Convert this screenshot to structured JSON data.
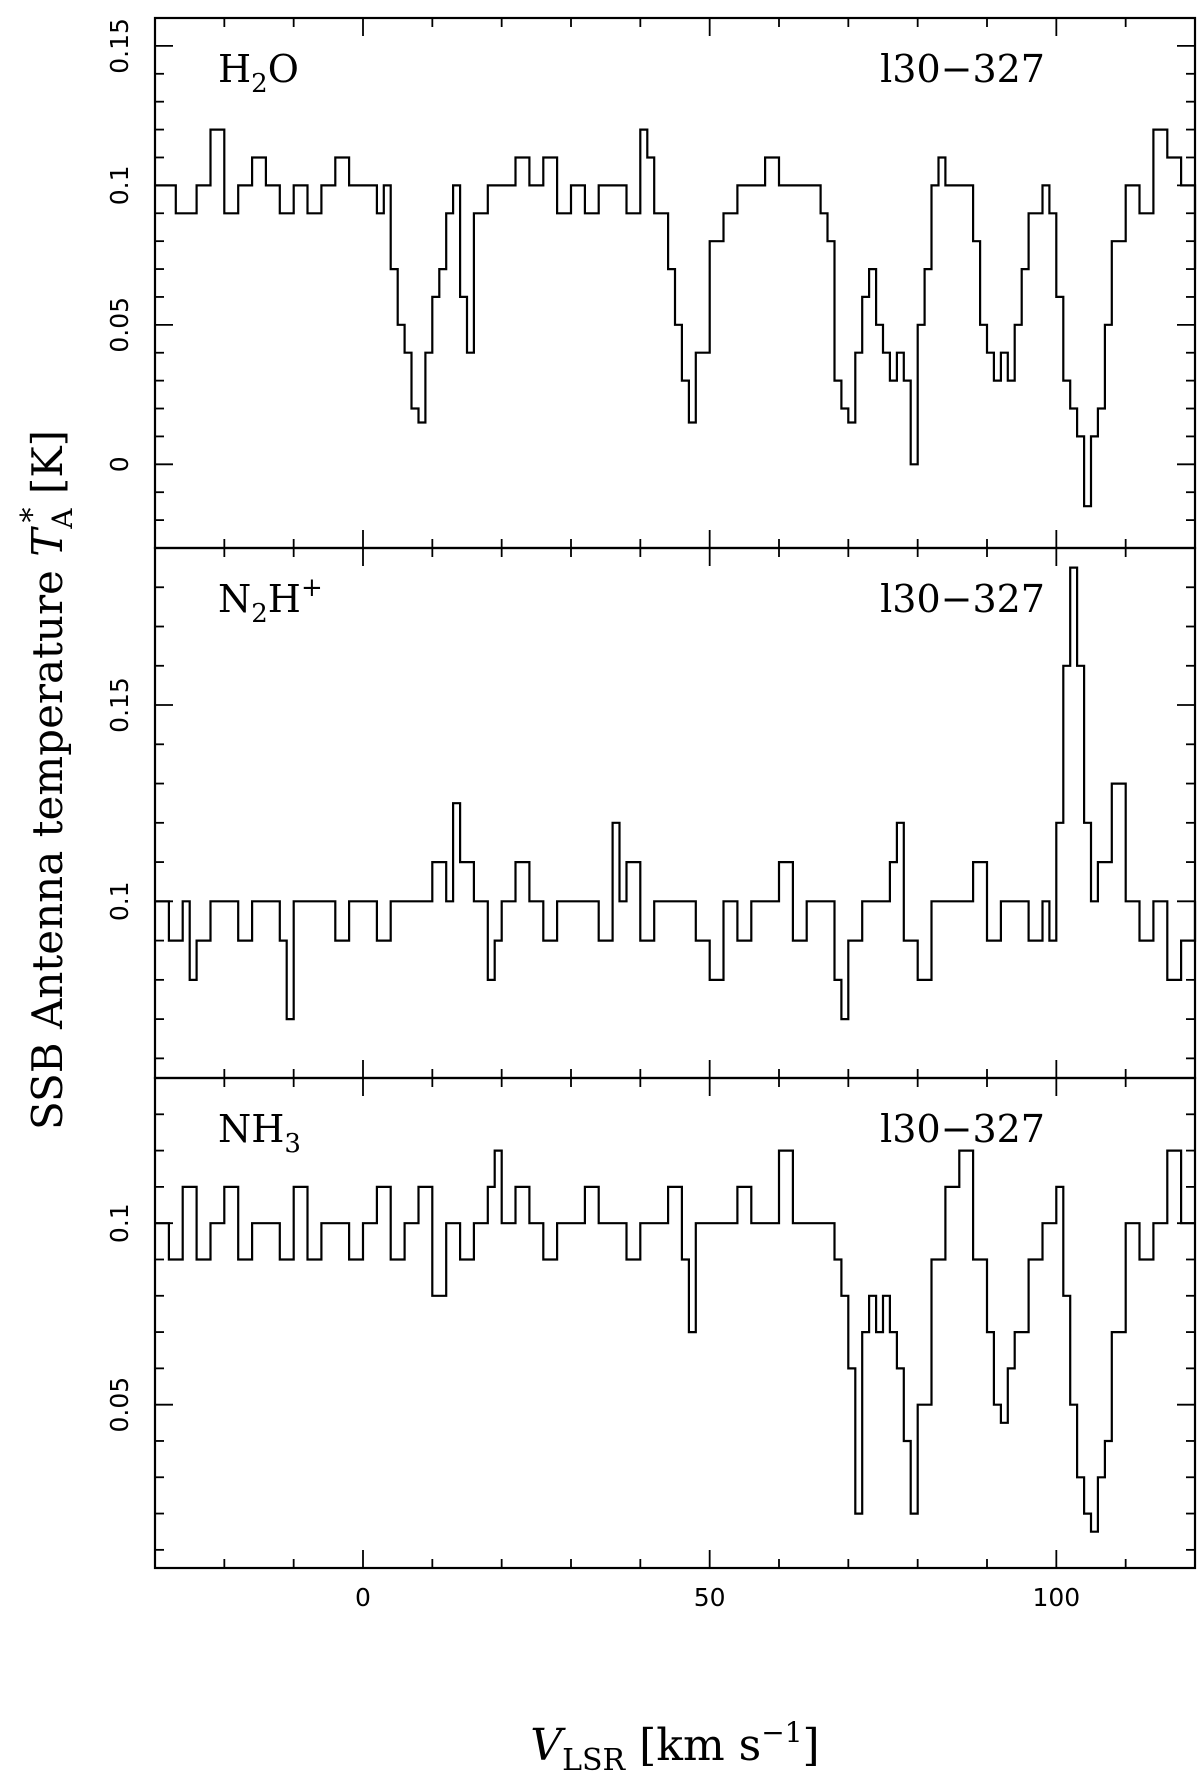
{
  "chart_data": [
    {
      "type": "line",
      "label": "H₂O",
      "source": "l30−327",
      "xlim": [
        -30,
        120
      ],
      "ylim": [
        -0.03,
        0.16
      ],
      "yticks_major": [
        0,
        0.05,
        0.1,
        0.15
      ],
      "ytick_labels": [
        "0",
        "0.05",
        "0.1",
        "0.15"
      ],
      "x": [
        -30,
        -27,
        -24,
        -22,
        -20,
        -18,
        -16,
        -14,
        -12,
        -10,
        -8,
        -6,
        -4,
        -2,
        0,
        2,
        3,
        4,
        5,
        6,
        7,
        8,
        9,
        10,
        11,
        12,
        13,
        14,
        15,
        16,
        18,
        20,
        22,
        24,
        26,
        28,
        30,
        32,
        34,
        36,
        38,
        40,
        41,
        42,
        44,
        45,
        46,
        47,
        48,
        50,
        52,
        54,
        56,
        58,
        60,
        62,
        64,
        66,
        67,
        68,
        69,
        70,
        71,
        72,
        73,
        74,
        75,
        76,
        77,
        78,
        79,
        80,
        81,
        82,
        83,
        84,
        86,
        88,
        89,
        90,
        91,
        92,
        93,
        94,
        95,
        96,
        98,
        99,
        100,
        101,
        102,
        103,
        104,
        105,
        106,
        107,
        108,
        110,
        112,
        114,
        116,
        118,
        120
      ],
      "values": [
        0.1,
        0.09,
        0.1,
        0.12,
        0.09,
        0.1,
        0.11,
        0.1,
        0.09,
        0.1,
        0.09,
        0.1,
        0.11,
        0.1,
        0.1,
        0.09,
        0.1,
        0.07,
        0.05,
        0.04,
        0.02,
        0.015,
        0.04,
        0.06,
        0.07,
        0.09,
        0.1,
        0.06,
        0.04,
        0.09,
        0.1,
        0.1,
        0.11,
        0.1,
        0.11,
        0.09,
        0.1,
        0.09,
        0.1,
        0.1,
        0.09,
        0.12,
        0.11,
        0.09,
        0.07,
        0.05,
        0.03,
        0.015,
        0.04,
        0.08,
        0.09,
        0.1,
        0.1,
        0.11,
        0.1,
        0.1,
        0.1,
        0.09,
        0.08,
        0.03,
        0.02,
        0.015,
        0.04,
        0.06,
        0.07,
        0.05,
        0.04,
        0.03,
        0.04,
        0.03,
        0.0,
        0.05,
        0.07,
        0.1,
        0.11,
        0.1,
        0.1,
        0.08,
        0.05,
        0.04,
        0.03,
        0.04,
        0.03,
        0.05,
        0.07,
        0.09,
        0.1,
        0.09,
        0.06,
        0.03,
        0.02,
        0.01,
        -0.015,
        0.01,
        0.02,
        0.05,
        0.08,
        0.1,
        0.09,
        0.12,
        0.11,
        0.1,
        0.07
      ]
    },
    {
      "type": "line",
      "label": "N₂H⁺",
      "source": "l30−327",
      "xlim": [
        -30,
        120
      ],
      "ylim": [
        0.055,
        0.19
      ],
      "yticks_major": [
        0.1,
        0.15
      ],
      "ytick_labels": [
        "0.1",
        "0.15"
      ],
      "x": [
        -30,
        -28,
        -26,
        -25,
        -24,
        -22,
        -20,
        -18,
        -16,
        -14,
        -12,
        -11,
        -10,
        -8,
        -6,
        -4,
        -2,
        0,
        2,
        4,
        6,
        8,
        10,
        12,
        13,
        14,
        16,
        18,
        19,
        20,
        22,
        24,
        26,
        28,
        30,
        32,
        34,
        36,
        37,
        38,
        40,
        42,
        44,
        46,
        48,
        50,
        52,
        54,
        56,
        58,
        60,
        62,
        64,
        66,
        68,
        69,
        70,
        72,
        74,
        76,
        77,
        78,
        80,
        82,
        84,
        86,
        88,
        90,
        92,
        94,
        96,
        98,
        99,
        100,
        101,
        102,
        103,
        104,
        105,
        106,
        108,
        110,
        112,
        114,
        116,
        118,
        120
      ],
      "values": [
        0.1,
        0.09,
        0.1,
        0.08,
        0.09,
        0.1,
        0.1,
        0.09,
        0.1,
        0.1,
        0.09,
        0.07,
        0.1,
        0.1,
        0.1,
        0.09,
        0.1,
        0.1,
        0.09,
        0.1,
        0.1,
        0.1,
        0.11,
        0.1,
        0.125,
        0.11,
        0.1,
        0.08,
        0.09,
        0.1,
        0.11,
        0.1,
        0.09,
        0.1,
        0.1,
        0.1,
        0.09,
        0.12,
        0.1,
        0.11,
        0.09,
        0.1,
        0.1,
        0.1,
        0.09,
        0.08,
        0.1,
        0.09,
        0.1,
        0.1,
        0.11,
        0.09,
        0.1,
        0.1,
        0.08,
        0.07,
        0.09,
        0.1,
        0.1,
        0.11,
        0.12,
        0.09,
        0.08,
        0.1,
        0.1,
        0.1,
        0.11,
        0.09,
        0.1,
        0.1,
        0.09,
        0.1,
        0.09,
        0.12,
        0.16,
        0.185,
        0.16,
        0.12,
        0.1,
        0.11,
        0.13,
        0.1,
        0.09,
        0.1,
        0.08,
        0.09,
        0.1
      ]
    },
    {
      "type": "line",
      "label": "NH₃",
      "source": "l30−327",
      "xlim": [
        -30,
        120
      ],
      "ylim": [
        0.005,
        0.14
      ],
      "yticks_major": [
        0.05,
        0.1
      ],
      "ytick_labels": [
        "0.05",
        "0.1"
      ],
      "x": [
        -30,
        -28,
        -26,
        -24,
        -22,
        -20,
        -18,
        -16,
        -14,
        -12,
        -10,
        -8,
        -6,
        -4,
        -2,
        0,
        2,
        4,
        6,
        8,
        10,
        12,
        14,
        16,
        18,
        19,
        20,
        22,
        24,
        26,
        28,
        30,
        32,
        34,
        36,
        38,
        40,
        42,
        44,
        46,
        47,
        48,
        50,
        52,
        54,
        56,
        58,
        60,
        62,
        64,
        66,
        68,
        69,
        70,
        71,
        72,
        73,
        74,
        75,
        76,
        77,
        78,
        79,
        80,
        82,
        84,
        86,
        88,
        90,
        91,
        92,
        93,
        94,
        96,
        98,
        100,
        101,
        102,
        103,
        104,
        105,
        106,
        107,
        108,
        110,
        112,
        114,
        116,
        118,
        120
      ],
      "values": [
        0.1,
        0.09,
        0.11,
        0.09,
        0.1,
        0.11,
        0.09,
        0.1,
        0.1,
        0.09,
        0.11,
        0.09,
        0.1,
        0.1,
        0.09,
        0.1,
        0.11,
        0.09,
        0.1,
        0.11,
        0.08,
        0.1,
        0.09,
        0.1,
        0.11,
        0.12,
        0.1,
        0.11,
        0.1,
        0.09,
        0.1,
        0.1,
        0.11,
        0.1,
        0.1,
        0.09,
        0.1,
        0.1,
        0.11,
        0.09,
        0.07,
        0.1,
        0.1,
        0.1,
        0.11,
        0.1,
        0.1,
        0.12,
        0.1,
        0.1,
        0.1,
        0.09,
        0.08,
        0.06,
        0.02,
        0.07,
        0.08,
        0.07,
        0.08,
        0.07,
        0.06,
        0.04,
        0.02,
        0.05,
        0.09,
        0.11,
        0.12,
        0.09,
        0.07,
        0.05,
        0.045,
        0.06,
        0.07,
        0.09,
        0.1,
        0.11,
        0.08,
        0.05,
        0.03,
        0.02,
        0.015,
        0.03,
        0.04,
        0.07,
        0.1,
        0.09,
        0.1,
        0.12,
        0.1,
        0.1
      ]
    }
  ],
  "x_axis": {
    "ticks": [
      0,
      50,
      100
    ],
    "tick_labels": [
      "0",
      "50",
      "100"
    ],
    "minor_step": 10,
    "label_main": "V",
    "label_sub": "LSR",
    "label_unit": " [km s",
    "label_exp": "−1",
    "label_close": "]"
  },
  "y_axis": {
    "label_main": "SSB Antenna temperature ",
    "label_var": "T",
    "label_sub": "A",
    "label_sup": "*",
    "label_unit": " [K]"
  }
}
